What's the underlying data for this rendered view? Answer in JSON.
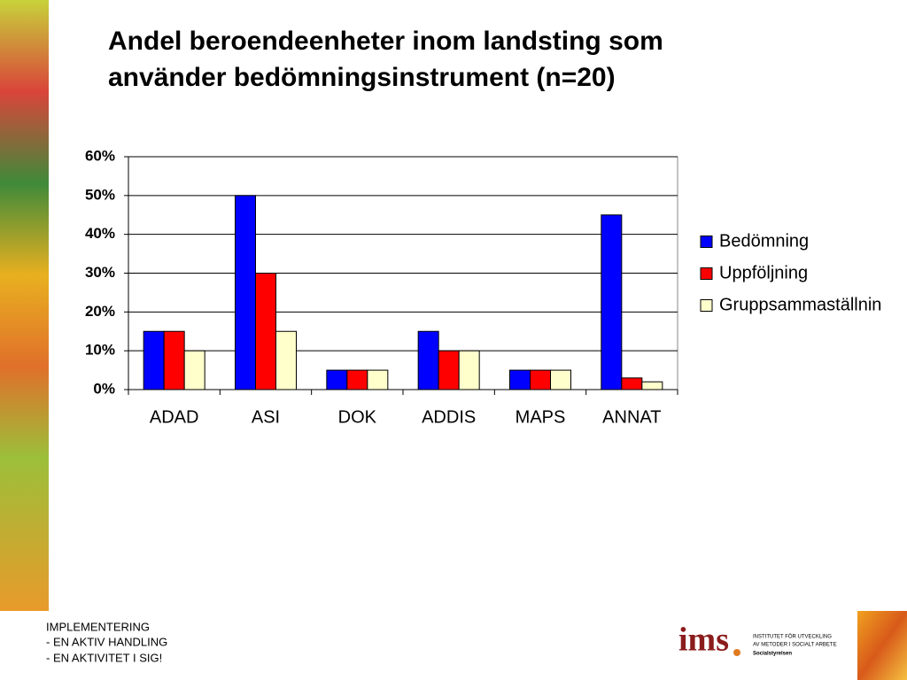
{
  "chart_data": {
    "type": "bar",
    "title": "Andel beroendeenheter inom landsting som använder bedömningsinstrument (n=20)",
    "categories": [
      "ADAD",
      "ASI",
      "DOK",
      "ADDIS",
      "MAPS",
      "ANNAT"
    ],
    "series": [
      {
        "name": "Bedömning",
        "color": "#0000ff",
        "values": [
          15,
          50,
          5,
          15,
          5,
          45
        ]
      },
      {
        "name": "Uppföljning",
        "color": "#ff0000",
        "values": [
          15,
          30,
          5,
          10,
          5,
          3
        ]
      },
      {
        "name": "Gruppsammaställnin",
        "color": "#ffffcc",
        "values": [
          10,
          15,
          5,
          10,
          5,
          2
        ]
      }
    ],
    "ylim": [
      0,
      60
    ],
    "yticks": [
      {
        "value": 0,
        "label": "0%"
      },
      {
        "value": 10,
        "label": "10%"
      },
      {
        "value": 20,
        "label": "20%"
      },
      {
        "value": 30,
        "label": "30%"
      },
      {
        "value": 40,
        "label": "40%"
      },
      {
        "value": 50,
        "label": "50%"
      },
      {
        "value": 60,
        "label": "60%"
      }
    ],
    "grid": true,
    "legend": "right"
  },
  "footer": {
    "lines": [
      "IMPLEMENTERING",
      "- EN AKTIV HANDLING",
      "- EN AKTIVITET I SIG!"
    ]
  },
  "logo": {
    "mark": "ims",
    "lines": [
      "INSTITUTET FÖR UTVECKLING",
      "AV METODER I SOCIALT ARBETE",
      "Socialstyrelsen"
    ]
  }
}
